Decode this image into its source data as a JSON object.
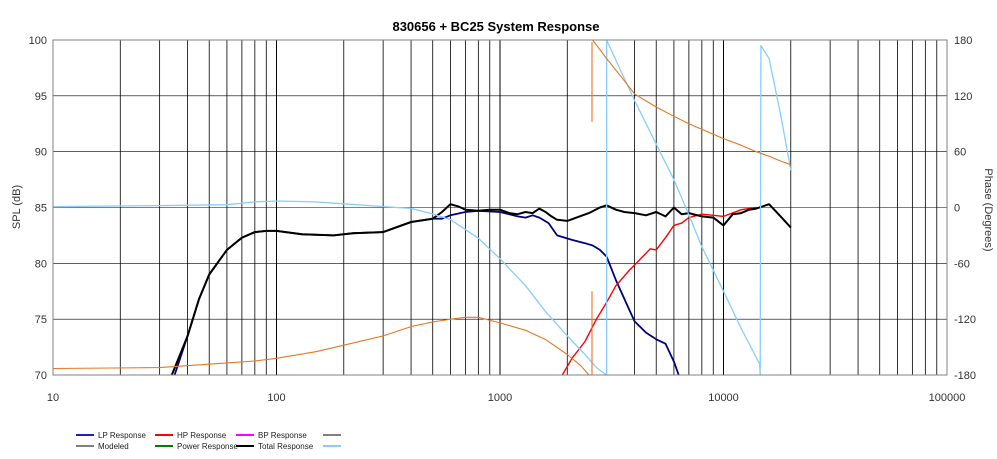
{
  "chart_data": {
    "type": "line",
    "title": "830656 + BC25    System Response",
    "ylabel": "SPL (dB)",
    "y2label": "Phase (Degrees)",
    "xscale": "log",
    "xlim": [
      10,
      100000
    ],
    "ylim": [
      70,
      100
    ],
    "y2lim": [
      -180,
      180
    ],
    "x_ticks": [
      "10",
      "100",
      "1000",
      "10000",
      "100000"
    ],
    "y_ticks": [
      "100",
      "95",
      "90",
      "85",
      "80",
      "75",
      "70"
    ],
    "y2_ticks": [
      "180",
      "120",
      "60",
      "0",
      "-60",
      "-120",
      "-180"
    ],
    "grid": true,
    "legend_position": "bottom-left",
    "legend": [
      {
        "label": "LP Response",
        "color": "#1f1fbf"
      },
      {
        "label": "HP Response",
        "color": "#ff0000"
      },
      {
        "label": "BP Response",
        "color": "#ff00ff"
      },
      {
        "label": "",
        "color": "#808080"
      },
      {
        "label": "Modeled",
        "color": "#808080"
      },
      {
        "label": "Power Response",
        "color": "#008000"
      },
      {
        "label": "Total Response",
        "color": "#000000"
      },
      {
        "label": "",
        "color": "#87cefa"
      }
    ],
    "series": [
      {
        "name": "LP Response",
        "color": "#000080",
        "axis": "spl",
        "width": 1.8,
        "points": [
          [
            35,
            70
          ],
          [
            40,
            73.5
          ],
          [
            45,
            76.8
          ],
          [
            50,
            79
          ],
          [
            60,
            81.2
          ],
          [
            70,
            82.3
          ],
          [
            80,
            82.8
          ],
          [
            90,
            82.9
          ],
          [
            100,
            82.9
          ],
          [
            130,
            82.6
          ],
          [
            180,
            82.5
          ],
          [
            220,
            82.7
          ],
          [
            300,
            82.8
          ],
          [
            400,
            83.7
          ],
          [
            500,
            84
          ],
          [
            550,
            84
          ],
          [
            600,
            84.3
          ],
          [
            700,
            84.6
          ],
          [
            800,
            84.7
          ],
          [
            1000,
            84.6
          ],
          [
            1200,
            84.2
          ],
          [
            1300,
            84.1
          ],
          [
            1400,
            84.3
          ],
          [
            1500,
            84.1
          ],
          [
            1650,
            83.6
          ],
          [
            1800,
            82.5
          ],
          [
            2100,
            82.1
          ],
          [
            2400,
            81.8
          ],
          [
            2600,
            81.6
          ],
          [
            2800,
            81.2
          ],
          [
            3000,
            80.6
          ],
          [
            3300,
            78.5
          ],
          [
            3700,
            76.3
          ],
          [
            4000,
            74.8
          ],
          [
            4500,
            73.8
          ],
          [
            5000,
            73.2
          ],
          [
            5500,
            72.8
          ],
          [
            6000,
            71.2
          ],
          [
            6300,
            70
          ]
        ]
      },
      {
        "name": "HP Response",
        "color": "#ff0000",
        "axis": "spl",
        "width": 1.4,
        "points": [
          [
            1900,
            70
          ],
          [
            2100,
            71.5
          ],
          [
            2400,
            73
          ],
          [
            2700,
            75
          ],
          [
            3000,
            76.5
          ],
          [
            3300,
            78
          ],
          [
            3800,
            79.4
          ],
          [
            4300,
            80.5
          ],
          [
            4700,
            81.3
          ],
          [
            5000,
            81.2
          ],
          [
            5500,
            82.3
          ],
          [
            6000,
            83.4
          ],
          [
            6500,
            83.6
          ],
          [
            7000,
            84.1
          ],
          [
            8000,
            84.4
          ],
          [
            9000,
            84.3
          ],
          [
            10000,
            84.2
          ],
          [
            12000,
            84.8
          ],
          [
            14000,
            85
          ]
        ]
      },
      {
        "name": "Total Response",
        "color": "#000000",
        "axis": "spl",
        "width": 2,
        "points": [
          [
            34,
            70
          ],
          [
            40,
            73.5
          ],
          [
            45,
            76.8
          ],
          [
            50,
            79
          ],
          [
            60,
            81.2
          ],
          [
            70,
            82.3
          ],
          [
            80,
            82.8
          ],
          [
            90,
            82.9
          ],
          [
            100,
            82.9
          ],
          [
            130,
            82.6
          ],
          [
            180,
            82.5
          ],
          [
            220,
            82.7
          ],
          [
            300,
            82.8
          ],
          [
            400,
            83.7
          ],
          [
            500,
            84
          ],
          [
            550,
            84.6
          ],
          [
            600,
            85.3
          ],
          [
            650,
            85.1
          ],
          [
            700,
            84.8
          ],
          [
            800,
            84.7
          ],
          [
            900,
            84.8
          ],
          [
            1000,
            84.8
          ],
          [
            1100,
            84.5
          ],
          [
            1200,
            84.4
          ],
          [
            1300,
            84.6
          ],
          [
            1400,
            84.5
          ],
          [
            1500,
            84.9
          ],
          [
            1600,
            84.6
          ],
          [
            1700,
            84.2
          ],
          [
            1800,
            83.9
          ],
          [
            2000,
            83.8
          ],
          [
            2200,
            84.1
          ],
          [
            2500,
            84.5
          ],
          [
            2800,
            85
          ],
          [
            3000,
            85.2
          ],
          [
            3300,
            84.8
          ],
          [
            3600,
            84.6
          ],
          [
            4000,
            84.5
          ],
          [
            4500,
            84.3
          ],
          [
            5000,
            84.6
          ],
          [
            5500,
            84.2
          ],
          [
            6000,
            85
          ],
          [
            6500,
            84.4
          ],
          [
            7000,
            84.5
          ],
          [
            8000,
            84.2
          ],
          [
            9000,
            84.1
          ],
          [
            10000,
            83.4
          ],
          [
            11000,
            84.4
          ],
          [
            12000,
            84.5
          ],
          [
            13000,
            84.8
          ],
          [
            14000,
            84.9
          ],
          [
            16000,
            85.3
          ],
          [
            18000,
            84.2
          ],
          [
            20000,
            83.2
          ]
        ]
      },
      {
        "name": "",
        "color": "#87cefa",
        "axis": "phase",
        "width": 1.3,
        "points": [
          [
            10,
            1
          ],
          [
            30,
            2
          ],
          [
            60,
            3
          ],
          [
            80,
            6
          ],
          [
            100,
            7
          ],
          [
            150,
            6
          ],
          [
            200,
            4
          ],
          [
            300,
            1
          ],
          [
            400,
            -1
          ],
          [
            500,
            -7
          ],
          [
            600,
            -13
          ],
          [
            800,
            -33
          ],
          [
            1000,
            -55
          ],
          [
            1300,
            -84
          ],
          [
            1600,
            -112
          ],
          [
            2000,
            -138
          ],
          [
            2400,
            -158
          ],
          [
            2700,
            -172
          ],
          [
            3000,
            -180
          ],
          [
            3000,
            180
          ],
          [
            3500,
            145
          ],
          [
            4000,
            115
          ],
          [
            5000,
            68
          ],
          [
            6000,
            30
          ],
          [
            7000,
            -8
          ],
          [
            8000,
            -42
          ],
          [
            10000,
            -90
          ],
          [
            12000,
            -130
          ],
          [
            14500,
            -168
          ],
          [
            14600,
            -180
          ],
          [
            14700,
            174
          ],
          [
            16000,
            160
          ],
          [
            18000,
            100
          ],
          [
            20000,
            40
          ]
        ]
      },
      {
        "name": "",
        "color": "#e87722",
        "axis": "phase",
        "width": 1.1,
        "points": [
          [
            10,
            -173
          ],
          [
            30,
            -172
          ],
          [
            60,
            -167
          ],
          [
            80,
            -165
          ],
          [
            100,
            -162
          ],
          [
            150,
            -155
          ],
          [
            200,
            -148
          ],
          [
            300,
            -138
          ],
          [
            400,
            -128
          ],
          [
            500,
            -123
          ],
          [
            600,
            -120
          ],
          [
            700,
            -118
          ],
          [
            800,
            -118
          ],
          [
            1000,
            -124
          ],
          [
            1300,
            -132
          ],
          [
            1600,
            -142
          ],
          [
            2000,
            -158
          ],
          [
            2300,
            -170
          ],
          [
            2500,
            -180
          ]
        ]
      },
      {
        "name": "",
        "color": "#e87722",
        "axis": "phase",
        "width": 1.1,
        "points": [
          [
            2600,
            180
          ],
          [
            3000,
            160
          ],
          [
            3500,
            140
          ],
          [
            4000,
            122
          ],
          [
            5000,
            108
          ],
          [
            6000,
            98
          ],
          [
            7000,
            90
          ],
          [
            8000,
            84
          ],
          [
            10000,
            74
          ],
          [
            12000,
            67
          ],
          [
            14000,
            60
          ],
          [
            16000,
            55
          ],
          [
            18000,
            50
          ],
          [
            20000,
            46
          ]
        ]
      },
      {
        "name": "",
        "color": "#e87722",
        "axis": "phase",
        "width": 1.1,
        "points": [
          [
            2580,
            92
          ],
          [
            2580,
            178
          ]
        ]
      },
      {
        "name": "",
        "color": "#e87722",
        "axis": "phase",
        "width": 1.1,
        "points": [
          [
            2580,
            -180
          ],
          [
            2580,
            -90
          ]
        ]
      }
    ]
  }
}
